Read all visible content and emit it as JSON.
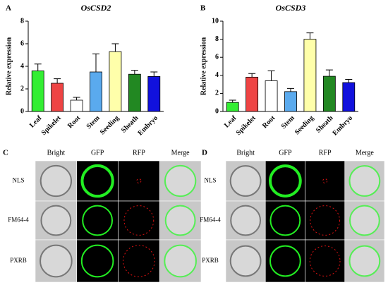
{
  "chart_data": [
    {
      "type": "bar",
      "panel": "A",
      "title": "OsCSD2",
      "ylabel": "Relative expression",
      "categories": [
        "Leaf",
        "Spikelet",
        "Root",
        "Stem",
        "Seeding",
        "Sheath",
        "Embryo"
      ],
      "values": [
        3.6,
        2.5,
        1.0,
        3.5,
        5.3,
        3.3,
        3.1
      ],
      "errors": [
        0.6,
        0.4,
        0.25,
        1.6,
        0.7,
        0.35,
        0.4
      ],
      "colors": [
        "#33ee33",
        "#ee4444",
        "#ffffff",
        "#5aaaee",
        "#ffffaa",
        "#228822",
        "#1111dd"
      ],
      "ylim": [
        0,
        8
      ],
      "yticks": [
        0,
        2,
        4,
        6,
        8
      ]
    },
    {
      "type": "bar",
      "panel": "B",
      "title": "OsCSD3",
      "ylabel": "Relative expression",
      "categories": [
        "Leaf",
        "Spikelet",
        "Root",
        "Stem",
        "Seeding",
        "Sheath",
        "Embryo"
      ],
      "values": [
        1.0,
        3.8,
        3.4,
        2.2,
        8.0,
        3.9,
        3.2
      ],
      "errors": [
        0.25,
        0.4,
        1.1,
        0.35,
        0.7,
        0.7,
        0.35
      ],
      "colors": [
        "#33ee33",
        "#ee4444",
        "#ffffff",
        "#5aaaee",
        "#ffffaa",
        "#228822",
        "#1111dd"
      ],
      "ylim": [
        0,
        10
      ],
      "yticks": [
        0,
        2,
        4,
        6,
        8,
        10
      ]
    }
  ],
  "microscopy": [
    {
      "panel": "C",
      "columns": [
        "Bright",
        "GFP",
        "RFP",
        "Merge"
      ],
      "rows": [
        "NLS",
        "FM64-4",
        "PXRB"
      ]
    },
    {
      "panel": "D",
      "columns": [
        "Bright",
        "GFP",
        "RFP",
        "Merge"
      ],
      "rows": [
        "NLS",
        "FM64-4",
        "PXRB"
      ]
    }
  ]
}
